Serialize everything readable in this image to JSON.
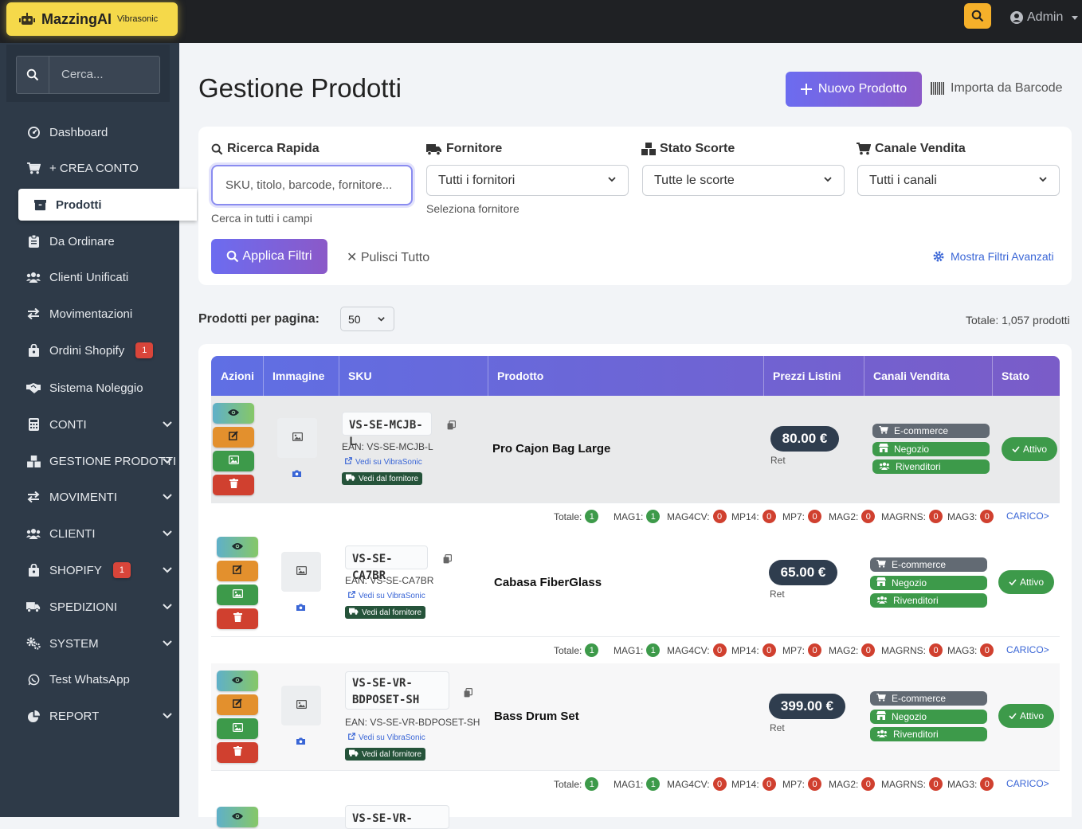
{
  "app": {
    "name": "MazzingAI",
    "sub": "Vibrasonic",
    "user": "Admin"
  },
  "sidebar": {
    "search_placeholder": "Cerca...",
    "items": [
      {
        "label": "Dashboard",
        "icon": "dashboard-icon"
      },
      {
        "label": "+ CREA CONTO",
        "icon": "cart-icon"
      },
      {
        "label": "Prodotti",
        "icon": "box-icon",
        "active": true
      },
      {
        "label": "Da Ordinare",
        "icon": "clipboard-icon"
      },
      {
        "label": "Clienti Unificati",
        "icon": "users-icon"
      },
      {
        "label": "Movimentazioni",
        "icon": "exchange-icon"
      },
      {
        "label": "Ordini Shopify",
        "icon": "shopping-bag-icon",
        "badge": "1"
      },
      {
        "label": "Sistema Noleggio",
        "icon": "handshake-icon"
      },
      {
        "label": "CONTI",
        "icon": "calculator-icon",
        "chevron": true
      },
      {
        "label": "GESTIONE PRODOTTI",
        "icon": "boxes-icon",
        "chevron": true
      },
      {
        "label": "MOVIMENTI",
        "icon": "exchange-icon",
        "chevron": true
      },
      {
        "label": "CLIENTI",
        "icon": "users-icon",
        "chevron": true
      },
      {
        "label": "SHOPIFY",
        "icon": "shopping-bag-icon",
        "chevron": true,
        "badge": "1"
      },
      {
        "label": "SPEDIZIONI",
        "icon": "truck-icon",
        "chevron": true
      },
      {
        "label": "SYSTEM",
        "icon": "cogs-icon",
        "chevron": true
      },
      {
        "label": "Test WhatsApp",
        "icon": "whatsapp-icon"
      },
      {
        "label": "REPORT",
        "icon": "pie-chart-icon",
        "chevron": true
      }
    ]
  },
  "page": {
    "title": "Gestione Prodotti",
    "new_button": "Nuovo Prodotto",
    "import_button": "Importa da Barcode"
  },
  "filters": {
    "search_label": "Ricerca Rapida",
    "search_placeholder": "SKU, titolo, barcode, fornitore...",
    "search_help": "Cerca in tutti i campi",
    "supplier_label": "Fornitore",
    "supplier_value": "Tutti i fornitori",
    "supplier_help": "Seleziona fornitore",
    "stock_label": "Stato Scorte",
    "stock_value": "Tutte le scorte",
    "channel_label": "Canale Vendita",
    "channel_value": "Tutti i canali",
    "apply": "Applica Filtri",
    "clear": "Pulisci Tutto",
    "advanced": "Mostra Filtri Avanzati"
  },
  "pagination": {
    "label": "Prodotti per pagina:",
    "value": "50",
    "total": "Totale: 1,057 prodotti"
  },
  "table": {
    "headers": [
      "Azioni",
      "Immagine",
      "SKU",
      "Prodotto",
      "Prezzi Listini",
      "Canali Vendita",
      "Stato"
    ],
    "ean_prefix": "EAN:",
    "vedi_label": "Vedi su VibraSonic",
    "forn_label": "Vedi dal fornitore",
    "ret_label": "Ret",
    "channels": [
      "E-commerce",
      "Negozio",
      "Rivenditori"
    ],
    "carico": "CARICO>",
    "stock_labels": [
      "Totale:",
      "MAG1:",
      "MAG4CV:",
      "MP14:",
      "MP7:",
      "MAG2:",
      "MAGRNS:",
      "MAG3:"
    ],
    "rows": [
      {
        "sku": "VS-SE-MCJB-L",
        "ean": "VS-SE-MCJB-L",
        "name": "Pro Cajon Bag Large",
        "price": "80.00 €",
        "status": "Attivo",
        "stock": [
          "1",
          "1",
          "0",
          "0",
          "0",
          "0",
          "0",
          "0"
        ]
      },
      {
        "sku": "VS-SE-CA7BR",
        "ean": "VS-SE-CA7BR",
        "name": "Cabasa FiberGlass",
        "price": "65.00 €",
        "status": "Attivo",
        "stock": [
          "1",
          "1",
          "0",
          "0",
          "0",
          "0",
          "0",
          "0"
        ]
      },
      {
        "sku": "VS-SE-VR-BDPOSET-SH",
        "sku_line1": "VS-SE-VR-",
        "sku_line2": "BDPOSET-SH",
        "ean": "VS-SE-VR-BDPOSET-SH",
        "name": "Bass Drum Set",
        "price": "399.00 €",
        "status": "Attivo",
        "stock": [
          "1",
          "1",
          "0",
          "0",
          "0",
          "0",
          "0",
          "0"
        ]
      },
      {
        "sku_partial": "VS-SE-VR-"
      }
    ]
  },
  "colors": {
    "accent": "#6c6cf0",
    "sidebar": "#2e3a48",
    "brand": "#f5d94a",
    "success": "#3d9a4a",
    "danger": "#d0402f"
  }
}
